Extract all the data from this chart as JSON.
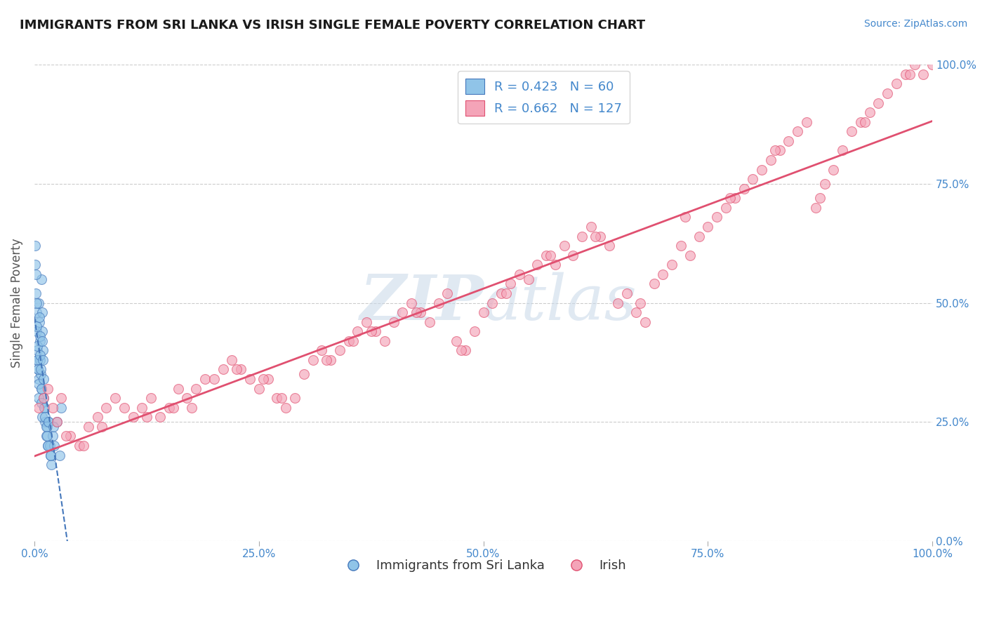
{
  "title": "IMMIGRANTS FROM SRI LANKA VS IRISH SINGLE FEMALE POVERTY CORRELATION CHART",
  "source": "Source: ZipAtlas.com",
  "ylabel": "Single Female Poverty",
  "xlabel_ticks": [
    "0.0%",
    "25.0%",
    "50.0%",
    "75.0%",
    "100.0%"
  ],
  "ylabel_ticks": [
    "0.0%",
    "25.0%",
    "50.0%",
    "75.0%",
    "100.0%"
  ],
  "legend1_R": "0.423",
  "legend1_N": "60",
  "legend2_R": "0.662",
  "legend2_N": "127",
  "blue_color": "#90c4e8",
  "pink_color": "#f4a4b8",
  "blue_line_color": "#4477bb",
  "pink_line_color": "#e05070",
  "source_color": "#4488cc",
  "legend_color": "#4488cc",
  "watermark_color": "#c8d8e8",
  "blue_scatter_x": [
    0.1,
    0.15,
    0.2,
    0.25,
    0.3,
    0.35,
    0.4,
    0.45,
    0.5,
    0.55,
    0.6,
    0.65,
    0.7,
    0.75,
    0.8,
    0.85,
    0.9,
    0.95,
    1.0,
    1.1,
    1.2,
    1.3,
    1.4,
    1.5,
    1.6,
    1.7,
    1.8,
    1.9,
    2.0,
    2.2,
    2.5,
    2.8,
    3.0,
    0.1,
    0.15,
    0.2,
    0.25,
    0.3,
    0.35,
    0.4,
    0.45,
    0.5,
    0.55,
    0.6,
    0.65,
    0.7,
    0.75,
    0.8,
    0.85,
    0.9,
    0.95,
    1.0,
    1.1,
    1.2,
    1.3,
    1.4,
    1.5,
    1.6,
    1.8,
    2.1
  ],
  "blue_scatter_y": [
    58,
    52,
    48,
    44,
    40,
    38,
    36,
    34,
    50,
    46,
    42,
    38,
    35,
    32,
    55,
    48,
    44,
    40,
    30,
    28,
    25,
    22,
    24,
    20,
    25,
    20,
    18,
    16,
    22,
    20,
    25,
    18,
    28,
    62,
    56,
    50,
    45,
    41,
    38,
    36,
    33,
    30,
    47,
    43,
    39,
    36,
    32,
    29,
    26,
    42,
    38,
    34,
    28,
    26,
    24,
    22,
    20,
    25,
    18,
    24
  ],
  "pink_scatter_x": [
    0.5,
    1.0,
    1.5,
    2.0,
    2.5,
    3.0,
    4.0,
    5.0,
    6.0,
    7.0,
    8.0,
    9.0,
    10.0,
    11.0,
    12.0,
    13.0,
    14.0,
    15.0,
    16.0,
    17.0,
    18.0,
    19.0,
    20.0,
    21.0,
    22.0,
    23.0,
    24.0,
    25.0,
    26.0,
    27.0,
    28.0,
    29.0,
    30.0,
    31.0,
    32.0,
    33.0,
    34.0,
    35.0,
    36.0,
    37.0,
    38.0,
    39.0,
    40.0,
    41.0,
    42.0,
    43.0,
    44.0,
    45.0,
    46.0,
    47.0,
    48.0,
    49.0,
    50.0,
    51.0,
    52.0,
    53.0,
    54.0,
    55.0,
    56.0,
    57.0,
    58.0,
    59.0,
    60.0,
    61.0,
    62.0,
    63.0,
    64.0,
    65.0,
    66.0,
    67.0,
    68.0,
    69.0,
    70.0,
    71.0,
    72.0,
    73.0,
    74.0,
    75.0,
    76.0,
    77.0,
    78.0,
    79.0,
    80.0,
    81.0,
    82.0,
    83.0,
    84.0,
    85.0,
    86.0,
    87.0,
    88.0,
    89.0,
    90.0,
    91.0,
    92.0,
    93.0,
    94.0,
    95.0,
    96.0,
    97.0,
    98.0,
    99.0,
    100.0,
    3.5,
    7.5,
    12.5,
    17.5,
    22.5,
    27.5,
    32.5,
    37.5,
    42.5,
    47.5,
    52.5,
    57.5,
    62.5,
    67.5,
    72.5,
    77.5,
    82.5,
    87.5,
    92.5,
    97.5,
    5.5,
    15.5,
    25.5,
    35.5
  ],
  "pink_scatter_y": [
    28,
    30,
    32,
    28,
    25,
    30,
    22,
    20,
    24,
    26,
    28,
    30,
    28,
    26,
    28,
    30,
    26,
    28,
    32,
    30,
    32,
    34,
    34,
    36,
    38,
    36,
    34,
    32,
    34,
    30,
    28,
    30,
    35,
    38,
    40,
    38,
    40,
    42,
    44,
    46,
    44,
    42,
    46,
    48,
    50,
    48,
    46,
    50,
    52,
    42,
    40,
    44,
    48,
    50,
    52,
    54,
    56,
    55,
    58,
    60,
    58,
    62,
    60,
    64,
    66,
    64,
    62,
    50,
    52,
    48,
    46,
    54,
    56,
    58,
    62,
    60,
    64,
    66,
    68,
    70,
    72,
    74,
    76,
    78,
    80,
    82,
    84,
    86,
    88,
    70,
    75,
    78,
    82,
    86,
    88,
    90,
    92,
    94,
    96,
    98,
    100,
    98,
    100,
    22,
    24,
    26,
    28,
    36,
    30,
    38,
    44,
    48,
    40,
    52,
    60,
    64,
    50,
    68,
    72,
    82,
    72,
    88,
    98,
    20,
    28,
    34,
    42
  ]
}
